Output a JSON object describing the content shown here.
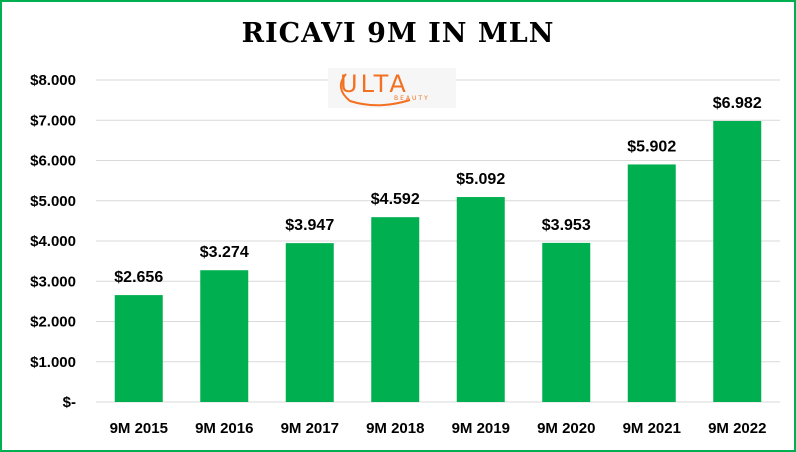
{
  "chart_data": {
    "type": "bar",
    "title": "RICAVI 9M IN MLN",
    "categories": [
      "9M 2015",
      "9M 2016",
      "9M 2017",
      "9M 2018",
      "9M 2019",
      "9M 2020",
      "9M 2021",
      "9M 2022"
    ],
    "values": [
      2656,
      3274,
      3947,
      4592,
      5092,
      3953,
      5902,
      6982
    ],
    "data_labels": [
      "$2.656",
      "$3.274",
      "$3.947",
      "$4.592",
      "$5.092",
      "$3.953",
      "$5.902",
      "$6.982"
    ],
    "y_ticks": [
      0,
      1000,
      2000,
      3000,
      4000,
      5000,
      6000,
      7000,
      8000
    ],
    "y_tick_labels": [
      "$-",
      "$1.000",
      "$2.000",
      "$3.000",
      "$4.000",
      "$5.000",
      "$6.000",
      "$7.000",
      "$8.000"
    ],
    "ylim": [
      0,
      8000
    ],
    "xlabel": "",
    "ylabel": "",
    "grid": true,
    "bar_color": "#00b050",
    "legend": "none"
  },
  "logo": {
    "wordmark": "ULTA",
    "subtext": "BEAUTY",
    "color": "#f37021"
  }
}
